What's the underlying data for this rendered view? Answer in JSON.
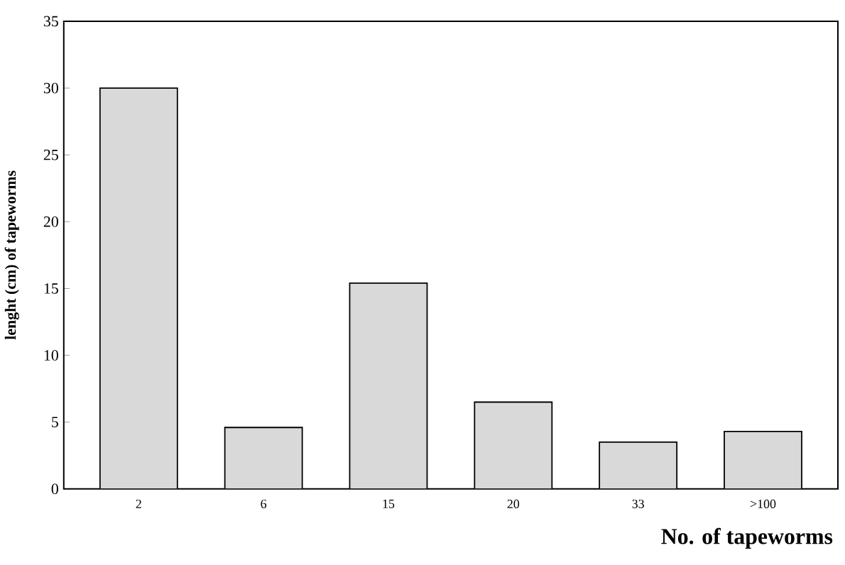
{
  "chart_data": {
    "type": "bar",
    "xlabel": "No. of tapeworms",
    "ylabel": "lenght (cm) of tapeworms",
    "categories": [
      "2",
      "6",
      "15",
      "20",
      "33",
      ">100"
    ],
    "values": [
      30,
      4.6,
      15.4,
      6.5,
      3.5,
      4.3
    ],
    "color": "#d9d9d9",
    "ylim": [
      0,
      35
    ],
    "yticks": [
      0,
      5,
      10,
      15,
      20,
      25,
      30,
      35
    ],
    "grid": false
  }
}
